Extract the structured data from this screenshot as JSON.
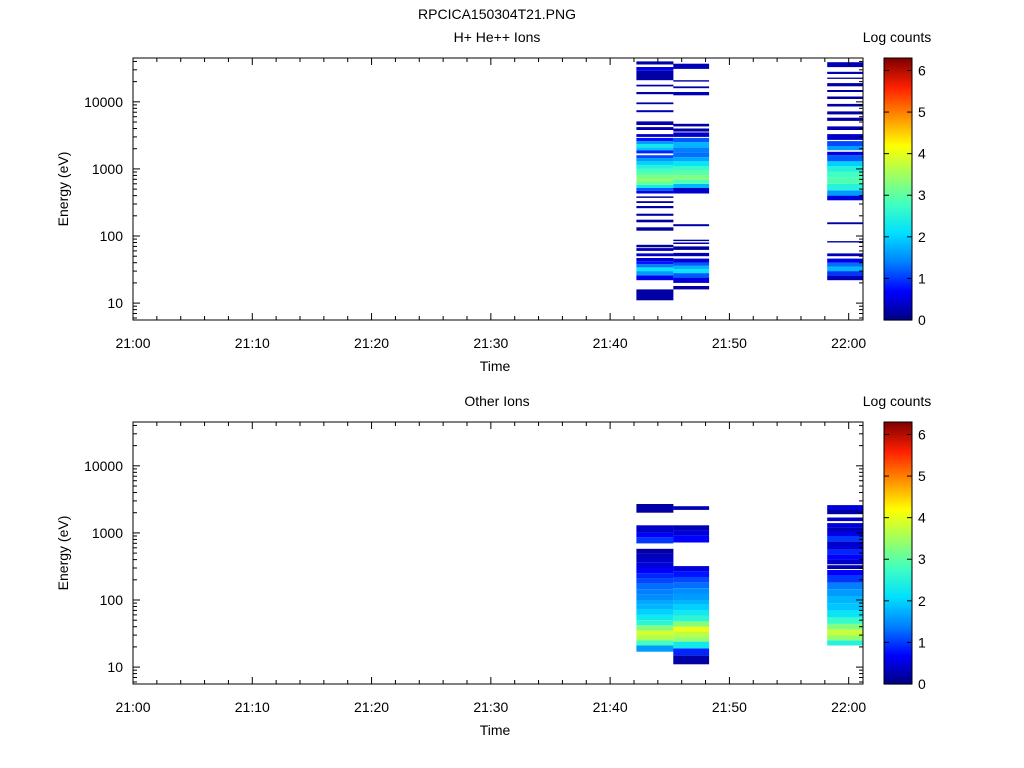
{
  "figure_title": "RPCICA150304T21.PNG",
  "colormap": [
    "#000080",
    "#0000ff",
    "#0080ff",
    "#00e0ff",
    "#40ffc0",
    "#a0ff60",
    "#ffff00",
    "#ff9000",
    "#ff2000",
    "#800000"
  ],
  "chart_data": [
    {
      "type": "heatmap",
      "title": "H+ He++ Ions",
      "xlabel": "Time",
      "ylabel": "Energy (eV)",
      "x_ticks": [
        "21:00",
        "21:10",
        "21:20",
        "21:30",
        "21:40",
        "21:50",
        "22:00"
      ],
      "xlim_minutes": [
        0,
        61.2
      ],
      "y_scale": "log",
      "y_ticks": [
        "10",
        "100",
        "1000",
        "10000"
      ],
      "ylim": [
        5.6,
        45000
      ],
      "colorbar": {
        "label": "Log counts",
        "ticks": [
          "0",
          "1",
          "2",
          "3",
          "4",
          "5",
          "6"
        ],
        "range": [
          0,
          6.3
        ]
      },
      "columns": [
        {
          "t_start_min": 42.2,
          "t_end_min": 45.3,
          "bins": [
            [
              11,
              16,
              0.2
            ],
            [
              22,
              26,
              0.6
            ],
            [
              26,
              30,
              1.6
            ],
            [
              30,
              34,
              2.2
            ],
            [
              34,
              38,
              1.4
            ],
            [
              38,
              42,
              0.8
            ],
            [
              42,
              47,
              0.5
            ],
            [
              50,
              55,
              0.4
            ],
            [
              60,
              66,
              0.3
            ],
            [
              68,
              74,
              0.2
            ],
            [
              120,
              135,
              0.2
            ],
            [
              160,
              175,
              0.2
            ],
            [
              200,
              215,
              0.2
            ],
            [
              260,
              280,
              0.2
            ],
            [
              310,
              330,
              0.2
            ],
            [
              370,
              390,
              0.2
            ],
            [
              430,
              470,
              0.6
            ],
            [
              470,
              520,
              1.2
            ],
            [
              520,
              580,
              2.3
            ],
            [
              580,
              650,
              3.1
            ],
            [
              650,
              720,
              3.4
            ],
            [
              720,
              800,
              3.2
            ],
            [
              800,
              900,
              3.0
            ],
            [
              900,
              1000,
              2.8
            ],
            [
              1000,
              1150,
              2.5
            ],
            [
              1150,
              1300,
              2.0
            ],
            [
              1300,
              1450,
              1.6
            ],
            [
              1450,
              1600,
              1.1
            ],
            [
              1700,
              1900,
              0.9
            ],
            [
              1900,
              2100,
              1.9
            ],
            [
              2100,
              2350,
              2.3
            ],
            [
              2350,
              2600,
              1.6
            ],
            [
              2600,
              2900,
              0.8
            ],
            [
              3000,
              3300,
              0.4
            ],
            [
              3800,
              4200,
              0.3
            ],
            [
              4500,
              5100,
              0.3
            ],
            [
              7000,
              7500,
              0.3
            ],
            [
              9200,
              9800,
              0.2
            ],
            [
              13000,
              14000,
              0.2
            ],
            [
              17000,
              18000,
              0.2
            ],
            [
              21000,
              29000,
              0.2
            ],
            [
              29000,
              33000,
              0.6
            ],
            [
              36000,
              40000,
              0.2
            ]
          ]
        },
        {
          "t_start_min": 45.3,
          "t_end_min": 48.3,
          "bins": [
            [
              16,
              18,
              0.2
            ],
            [
              20,
              24,
              0.5
            ],
            [
              24,
              28,
              1.2
            ],
            [
              28,
              32,
              2.2
            ],
            [
              32,
              36,
              1.8
            ],
            [
              36,
              40,
              1.2
            ],
            [
              40,
              46,
              0.5
            ],
            [
              50,
              56,
              0.3
            ],
            [
              62,
              70,
              0.2
            ],
            [
              76,
              80,
              0.2
            ],
            [
              84,
              88,
              0.2
            ],
            [
              140,
              150,
              0.2
            ],
            [
              430,
              520,
              0.4
            ],
            [
              520,
              600,
              1.8
            ],
            [
              600,
              700,
              2.9
            ],
            [
              700,
              800,
              3.3
            ],
            [
              800,
              950,
              3.0
            ],
            [
              950,
              1100,
              2.7
            ],
            [
              1100,
              1300,
              2.2
            ],
            [
              1300,
              1500,
              1.7
            ],
            [
              1500,
              1750,
              1.3
            ],
            [
              1750,
              2100,
              1.4
            ],
            [
              2100,
              2500,
              1.8
            ],
            [
              2500,
              2900,
              1.2
            ],
            [
              3000,
              3500,
              0.4
            ],
            [
              3600,
              4000,
              0.2
            ],
            [
              4300,
              4700,
              0.2
            ],
            [
              12500,
              14000,
              0.3
            ],
            [
              16000,
              17000,
              0.2
            ],
            [
              20000,
              21000,
              0.2
            ],
            [
              31000,
              37000,
              0.3
            ]
          ]
        },
        {
          "t_start_min": 58.2,
          "t_end_min": 61.2,
          "bins": [
            [
              22,
              26,
              0.3
            ],
            [
              26,
              30,
              1.0
            ],
            [
              30,
              35,
              1.8
            ],
            [
              35,
              40,
              1.3
            ],
            [
              40,
              46,
              0.6
            ],
            [
              50,
              55,
              0.3
            ],
            [
              80,
              84,
              0.2
            ],
            [
              150,
              160,
              0.2
            ],
            [
              340,
              400,
              0.5
            ],
            [
              400,
              480,
              1.6
            ],
            [
              480,
              600,
              2.5
            ],
            [
              600,
              750,
              2.9
            ],
            [
              750,
              900,
              2.8
            ],
            [
              900,
              1100,
              2.5
            ],
            [
              1100,
              1300,
              2.0
            ],
            [
              1300,
              1600,
              1.2
            ],
            [
              1600,
              1800,
              0.5
            ],
            [
              1900,
              2200,
              1.6
            ],
            [
              2200,
              2600,
              1.1
            ],
            [
              2700,
              3300,
              0.4
            ],
            [
              3800,
              4300,
              0.3
            ],
            [
              5200,
              5800,
              0.2
            ],
            [
              6500,
              7200,
              0.2
            ],
            [
              8500,
              9300,
              0.2
            ],
            [
              11000,
              12000,
              0.2
            ],
            [
              14000,
              15000,
              0.2
            ],
            [
              17000,
              19000,
              0.2
            ],
            [
              22000,
              23000,
              0.2
            ],
            [
              26000,
              28000,
              0.3
            ],
            [
              33000,
              39000,
              0.3
            ]
          ]
        }
      ]
    },
    {
      "type": "heatmap",
      "title": "Other Ions",
      "xlabel": "Time",
      "ylabel": "Energy (eV)",
      "x_ticks": [
        "21:00",
        "21:10",
        "21:20",
        "21:30",
        "21:40",
        "21:50",
        "22:00"
      ],
      "xlim_minutes": [
        0,
        61.2
      ],
      "y_scale": "log",
      "y_ticks": [
        "10",
        "100",
        "1000",
        "10000"
      ],
      "ylim": [
        5.6,
        45000
      ],
      "colorbar": {
        "label": "Log counts",
        "ticks": [
          "0",
          "1",
          "2",
          "3",
          "4",
          "5",
          "6"
        ],
        "range": [
          0,
          6.3
        ]
      },
      "columns": [
        {
          "t_start_min": 42.2,
          "t_end_min": 45.3,
          "bins": [
            [
              17,
              21,
              1.6
            ],
            [
              21,
              25,
              2.8
            ],
            [
              25,
              30,
              3.6
            ],
            [
              30,
              35,
              3.9
            ],
            [
              35,
              42,
              3.3
            ],
            [
              42,
              50,
              2.6
            ],
            [
              50,
              60,
              2.3
            ],
            [
              60,
              72,
              2.0
            ],
            [
              72,
              85,
              1.8
            ],
            [
              85,
              100,
              1.7
            ],
            [
              100,
              120,
              1.5
            ],
            [
              120,
              145,
              1.4
            ],
            [
              145,
              175,
              1.3
            ],
            [
              175,
              210,
              1.1
            ],
            [
              210,
              250,
              0.9
            ],
            [
              250,
              300,
              0.7
            ],
            [
              300,
              360,
              0.5
            ],
            [
              360,
              430,
              0.4
            ],
            [
              430,
              500,
              0.3
            ],
            [
              500,
              580,
              0.2
            ],
            [
              700,
              850,
              1.0
            ],
            [
              850,
              1000,
              0.7
            ],
            [
              1000,
              1300,
              0.4
            ],
            [
              2000,
              2700,
              0.2
            ]
          ]
        },
        {
          "t_start_min": 45.3,
          "t_end_min": 48.3,
          "bins": [
            [
              11,
              15,
              0.2
            ],
            [
              15,
              19,
              0.9
            ],
            [
              19,
              24,
              2.3
            ],
            [
              24,
              28,
              3.4
            ],
            [
              28,
              34,
              3.7
            ],
            [
              34,
              40,
              4.1
            ],
            [
              40,
              48,
              3.3
            ],
            [
              48,
              58,
              2.6
            ],
            [
              58,
              70,
              2.3
            ],
            [
              70,
              85,
              2.0
            ],
            [
              85,
              100,
              1.8
            ],
            [
              100,
              125,
              1.6
            ],
            [
              125,
              150,
              1.5
            ],
            [
              150,
              180,
              1.3
            ],
            [
              180,
              220,
              1.1
            ],
            [
              220,
              270,
              0.8
            ],
            [
              270,
              320,
              0.5
            ],
            [
              720,
              900,
              0.7
            ],
            [
              900,
              1100,
              0.5
            ],
            [
              1100,
              1300,
              0.3
            ],
            [
              2200,
              2500,
              0.3
            ]
          ]
        },
        {
          "t_start_min": 58.2,
          "t_end_min": 61.2,
          "bins": [
            [
              21,
              25,
              2.5
            ],
            [
              25,
              30,
              3.4
            ],
            [
              30,
              36,
              3.8
            ],
            [
              36,
              44,
              3.3
            ],
            [
              44,
              55,
              2.7
            ],
            [
              55,
              70,
              2.2
            ],
            [
              70,
              90,
              1.9
            ],
            [
              90,
              115,
              1.8
            ],
            [
              115,
              145,
              1.6
            ],
            [
              145,
              180,
              1.4
            ],
            [
              180,
              230,
              1.0
            ],
            [
              230,
              280,
              0.7
            ],
            [
              290,
              330,
              0.3
            ],
            [
              340,
              400,
              0.4
            ],
            [
              400,
              480,
              0.7
            ],
            [
              480,
              560,
              0.9
            ],
            [
              560,
              650,
              0.5
            ],
            [
              650,
              750,
              0.4
            ],
            [
              750,
              900,
              1.0
            ],
            [
              900,
              1050,
              0.6
            ],
            [
              1050,
              1200,
              0.3
            ],
            [
              1200,
              1400,
              0.5
            ],
            [
              1500,
              1700,
              0.4
            ],
            [
              1900,
              2200,
              0.2
            ],
            [
              2200,
              2600,
              0.5
            ]
          ]
        }
      ]
    }
  ]
}
